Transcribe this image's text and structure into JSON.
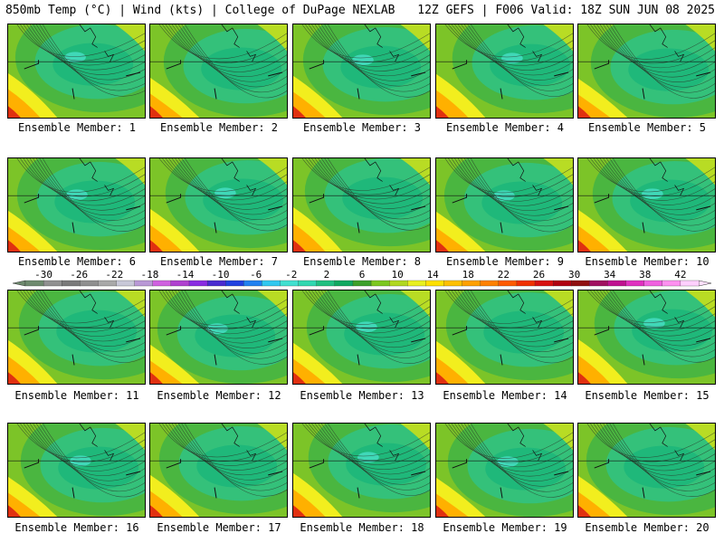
{
  "header": {
    "left": "850mb Temp (°C) | Wind (kts) | College of DuPage NEXLAB",
    "right": "12Z GEFS | F006 Valid: 18Z SUN JUN 08 2025"
  },
  "members": [
    {
      "label": "Ensemble Member: 1"
    },
    {
      "label": "Ensemble Member: 2"
    },
    {
      "label": "Ensemble Member: 3"
    },
    {
      "label": "Ensemble Member: 4"
    },
    {
      "label": "Ensemble Member: 5"
    },
    {
      "label": "Ensemble Member: 6"
    },
    {
      "label": "Ensemble Member: 7"
    },
    {
      "label": "Ensemble Member: 8"
    },
    {
      "label": "Ensemble Member: 9"
    },
    {
      "label": "Ensemble Member: 10"
    },
    {
      "label": "Ensemble Member: 11"
    },
    {
      "label": "Ensemble Member: 12"
    },
    {
      "label": "Ensemble Member: 13"
    },
    {
      "label": "Ensemble Member: 14"
    },
    {
      "label": "Ensemble Member: 15"
    },
    {
      "label": "Ensemble Member: 16"
    },
    {
      "label": "Ensemble Member: 17"
    },
    {
      "label": "Ensemble Member: 18"
    },
    {
      "label": "Ensemble Member: 19"
    },
    {
      "label": "Ensemble Member: 20"
    }
  ],
  "colorbar": {
    "tick_labels": [
      "-30",
      "-26",
      "-22",
      "-18",
      "-14",
      "-10",
      "-6",
      "-2",
      "2",
      "6",
      "10",
      "14",
      "18",
      "22",
      "26",
      "30",
      "34",
      "38",
      "42"
    ],
    "colors": [
      "#6e8a6e",
      "#909090",
      "#7a7a7a",
      "#8f8f8f",
      "#a8a8a8",
      "#c8c8d8",
      "#b998d6",
      "#d060e0",
      "#b040d0",
      "#8a2be2",
      "#4a2ad0",
      "#2040e0",
      "#2080f0",
      "#30c8f0",
      "#40e0d0",
      "#30d8b0",
      "#20c080",
      "#10a860",
      "#3da02a",
      "#7cc820",
      "#b0d820",
      "#e8f020",
      "#ffe000",
      "#ffc000",
      "#ffa000",
      "#ff8000",
      "#ff5a00",
      "#f03000",
      "#d81010",
      "#b00010",
      "#901010",
      "#a01060",
      "#c01090",
      "#e030c0",
      "#f060e0",
      "#ff90f0",
      "#ffd0ff"
    ]
  },
  "palette": {
    "core": "#1fb87a",
    "inner": "#34c17a",
    "mid": "#4ab640",
    "outer": "#7cc428",
    "yellowgreen": "#b8dc24",
    "yellow": "#f2ee1e",
    "orange": "#ffb000",
    "red": "#e03010",
    "cyan": "#48e0c8"
  }
}
